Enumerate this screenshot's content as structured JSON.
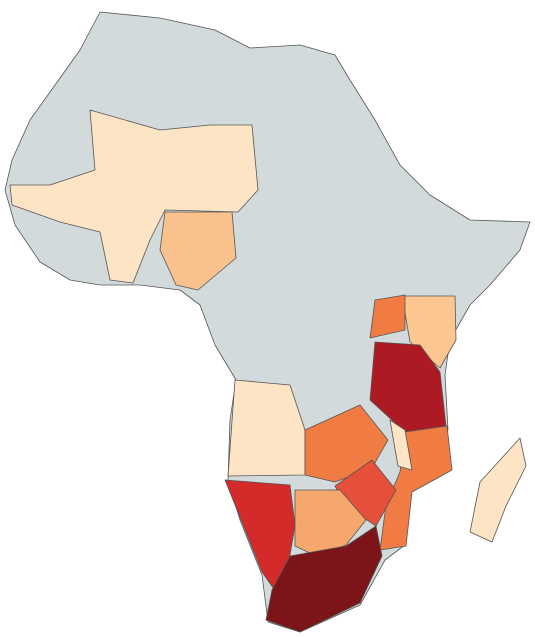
{
  "map": {
    "regions": [
      {
        "color": "#d3dadb"
      },
      {
        "color": "#fde4c4"
      },
      {
        "color": "#f9c28c"
      },
      {
        "color": "#fbc690"
      },
      {
        "color": "#f07c44"
      },
      {
        "color": "#ad1a24"
      },
      {
        "color": "#fde4c4"
      },
      {
        "color": "#f07c44"
      },
      {
        "color": "#f07c44"
      },
      {
        "color": "#e6503b"
      },
      {
        "color": "#d52a2a"
      },
      {
        "color": "#f6a86c"
      },
      {
        "color": "#7b1519"
      },
      {
        "color": "#fde4c4"
      },
      {
        "color": "#fde4c4"
      }
    ]
  }
}
